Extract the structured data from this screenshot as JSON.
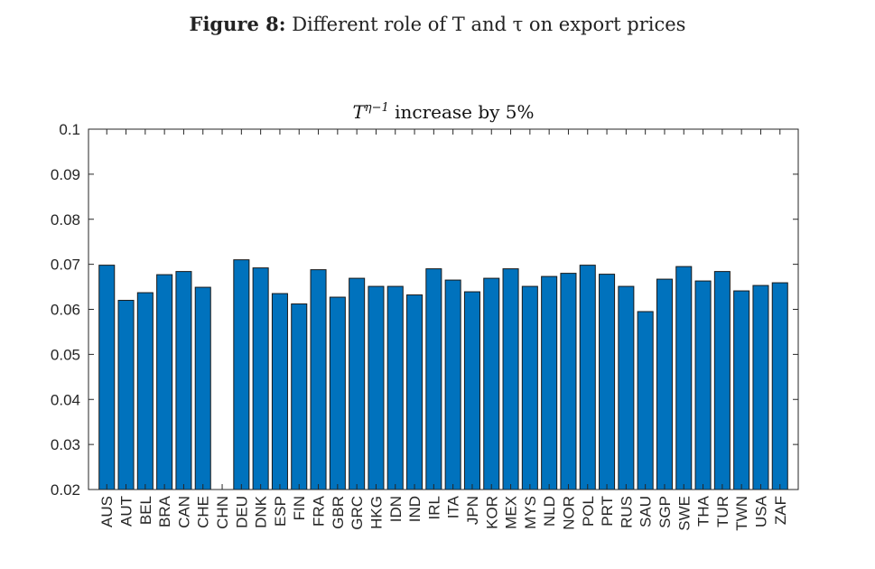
{
  "figure": {
    "label": "Figure 8:",
    "caption": "Different role of T and τ on export prices"
  },
  "chart_data": {
    "type": "bar",
    "title": "T^(η−1) increase by 5%",
    "title_base": "T",
    "title_superscript": "η−1",
    "title_rest": " increase by 5%",
    "xlabel": "",
    "ylabel": "",
    "ylim": [
      0.02,
      0.1
    ],
    "yticks": [
      0.02,
      0.03,
      0.04,
      0.05,
      0.06,
      0.07,
      0.08,
      0.09,
      0.1
    ],
    "ytick_labels": [
      "0.02",
      "0.03",
      "0.04",
      "0.05",
      "0.06",
      "0.07",
      "0.08",
      "0.09",
      "0.1"
    ],
    "grid": false,
    "bar_color": "#0072BD",
    "categories": [
      "AUS",
      "AUT",
      "BEL",
      "BRA",
      "CAN",
      "CHE",
      "CHN",
      "DEU",
      "DNK",
      "ESP",
      "FIN",
      "FRA",
      "GBR",
      "GRC",
      "HKG",
      "IDN",
      "IND",
      "IRL",
      "ITA",
      "JPN",
      "KOR",
      "MEX",
      "MYS",
      "NLD",
      "NOR",
      "POL",
      "PRT",
      "RUS",
      "SAU",
      "SGP",
      "SWE",
      "THA",
      "TUR",
      "TWN",
      "USA",
      "ZAF"
    ],
    "values": [
      0.0698,
      0.062,
      0.0637,
      0.0677,
      0.0684,
      0.0649,
      null,
      0.071,
      0.0692,
      0.0635,
      0.0612,
      0.0688,
      0.0627,
      0.0669,
      0.0651,
      0.0651,
      0.0632,
      0.069,
      0.0665,
      0.0639,
      0.0669,
      0.069,
      0.0651,
      0.0673,
      0.068,
      0.0698,
      0.0678,
      0.0651,
      0.0595,
      0.0667,
      0.0695,
      0.0663,
      0.0684,
      0.0641,
      0.0653,
      0.0659
    ]
  }
}
